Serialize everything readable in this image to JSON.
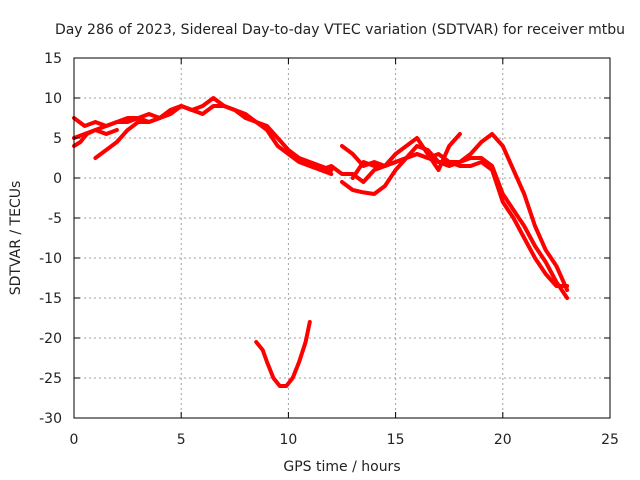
{
  "chart_data": {
    "type": "line",
    "title": "Day 286 of 2023, Sidereal Day-to-day VTEC variation (SDTVAR) for receiver mtbu",
    "xlabel": "GPS time / hours",
    "ylabel": "SDTVAR / TECUs",
    "xlim": [
      0,
      25
    ],
    "ylim": [
      -30,
      15
    ],
    "xticks": [
      0,
      5,
      10,
      15,
      20,
      25
    ],
    "yticks": [
      -30,
      -25,
      -20,
      -15,
      -10,
      -5,
      0,
      5,
      10,
      15
    ],
    "grid": true,
    "color": "#ff0000",
    "series": [
      {
        "name": "track-1",
        "x": [
          0,
          0.3,
          0.6,
          1.0,
          1.5,
          2.0,
          2.5,
          3.0,
          3.5,
          4.0,
          4.5,
          5.0,
          5.5,
          6.0,
          6.5,
          7.0,
          7.5,
          8.0,
          8.5,
          9.0,
          9.5,
          10.0,
          10.5,
          11.0,
          11.5,
          12.0
        ],
        "y": [
          4,
          4.5,
          5.5,
          6,
          6.5,
          7,
          7.5,
          7.5,
          7,
          7.5,
          8.5,
          9,
          8.5,
          9,
          10,
          9,
          8.5,
          7.5,
          7,
          6,
          4,
          3,
          2,
          1.5,
          1,
          0.5
        ]
      },
      {
        "name": "track-2",
        "x": [
          0,
          0.5,
          1.0,
          1.5,
          2.0,
          2.5,
          3.0,
          3.5,
          4.0,
          4.5,
          5.0,
          5.5,
          6.0,
          6.5,
          7.0,
          7.5,
          8.0,
          8.5,
          9.0,
          9.5,
          10.0,
          10.5,
          11.0,
          11.5,
          12.0
        ],
        "y": [
          7.5,
          6.5,
          7,
          6.5,
          7,
          7,
          7.5,
          8,
          7.5,
          8,
          9,
          8.5,
          8,
          9,
          9,
          8.5,
          8,
          7,
          6.5,
          5,
          3.5,
          2.5,
          2,
          1.5,
          1
        ]
      },
      {
        "name": "track-3",
        "x": [
          1.0,
          1.5,
          2.0,
          2.5,
          3.0,
          3.5,
          4.0,
          4.5,
          5.0,
          5.5
        ],
        "y": [
          2.5,
          3.5,
          4.5,
          6,
          7,
          7,
          7.5,
          8.5,
          9,
          8.5
        ]
      },
      {
        "name": "track-4",
        "x": [
          0,
          0.5,
          1.0,
          1.5,
          2.0
        ],
        "y": [
          5,
          5.5,
          6,
          5.5,
          6
        ]
      },
      {
        "name": "track-5",
        "x": [
          11.5,
          12.0,
          12.5,
          13.0,
          13.5,
          14.0,
          14.5,
          15.0,
          15.5,
          16.0,
          16.5,
          17.0,
          17.5,
          18.0,
          18.5,
          19.0,
          19.5,
          20.0,
          20.5,
          21.0,
          21.5,
          22.0,
          22.5,
          23.0
        ],
        "y": [
          1,
          1.5,
          0.5,
          0.5,
          -0.5,
          1,
          1.5,
          2,
          2.5,
          3,
          2.5,
          2,
          2,
          2,
          2.5,
          2.5,
          1.5,
          -2,
          -4,
          -6,
          -8.5,
          -10.5,
          -13,
          -15
        ]
      },
      {
        "name": "track-6",
        "x": [
          12.5,
          13.0,
          13.5,
          14.0,
          14.5,
          15.0,
          15.5,
          16.0,
          16.5,
          17.0,
          17.5,
          18.0,
          18.5,
          19.0,
          19.5,
          20.0,
          20.5,
          21.0,
          21.5,
          22.0,
          22.5,
          23.0
        ],
        "y": [
          -0.5,
          -1.5,
          -1.8,
          -2,
          -1,
          1,
          2.5,
          4,
          3.5,
          2,
          1.5,
          2,
          3,
          4.5,
          5.5,
          4,
          1,
          -2,
          -6,
          -9,
          -11,
          -14
        ]
      },
      {
        "name": "track-7",
        "x": [
          12.5,
          13.0,
          13.5,
          14.0,
          14.5,
          15.0,
          15.5,
          16.0,
          16.5,
          17.0,
          17.5,
          18.0,
          18.5,
          19.0,
          19.5,
          20.0,
          20.5,
          21.0,
          21.5,
          22.0,
          22.5,
          23.0
        ],
        "y": [
          4,
          3,
          1.5,
          2,
          1.5,
          2,
          2.5,
          3,
          2.5,
          3,
          2,
          1.5,
          1.5,
          2,
          1,
          -3,
          -5,
          -7.5,
          -10,
          -12,
          -13.5,
          -13.5
        ]
      },
      {
        "name": "track-8",
        "x": [
          13.0,
          13.5,
          14.0,
          14.5,
          15.0,
          15.5,
          16.0,
          16.5,
          17.0,
          17.5,
          18.0
        ],
        "y": [
          0,
          2,
          1.5,
          1.5,
          3,
          4,
          5,
          3,
          1,
          4,
          5.5
        ]
      },
      {
        "name": "track-9",
        "x": [
          8.5,
          8.8,
          9.0,
          9.3,
          9.6,
          9.9,
          10.2,
          10.5,
          10.8,
          11.0
        ],
        "y": [
          -20.5,
          -21.5,
          -23,
          -25,
          -26,
          -26,
          -25,
          -23,
          -20.5,
          -18
        ]
      }
    ]
  }
}
